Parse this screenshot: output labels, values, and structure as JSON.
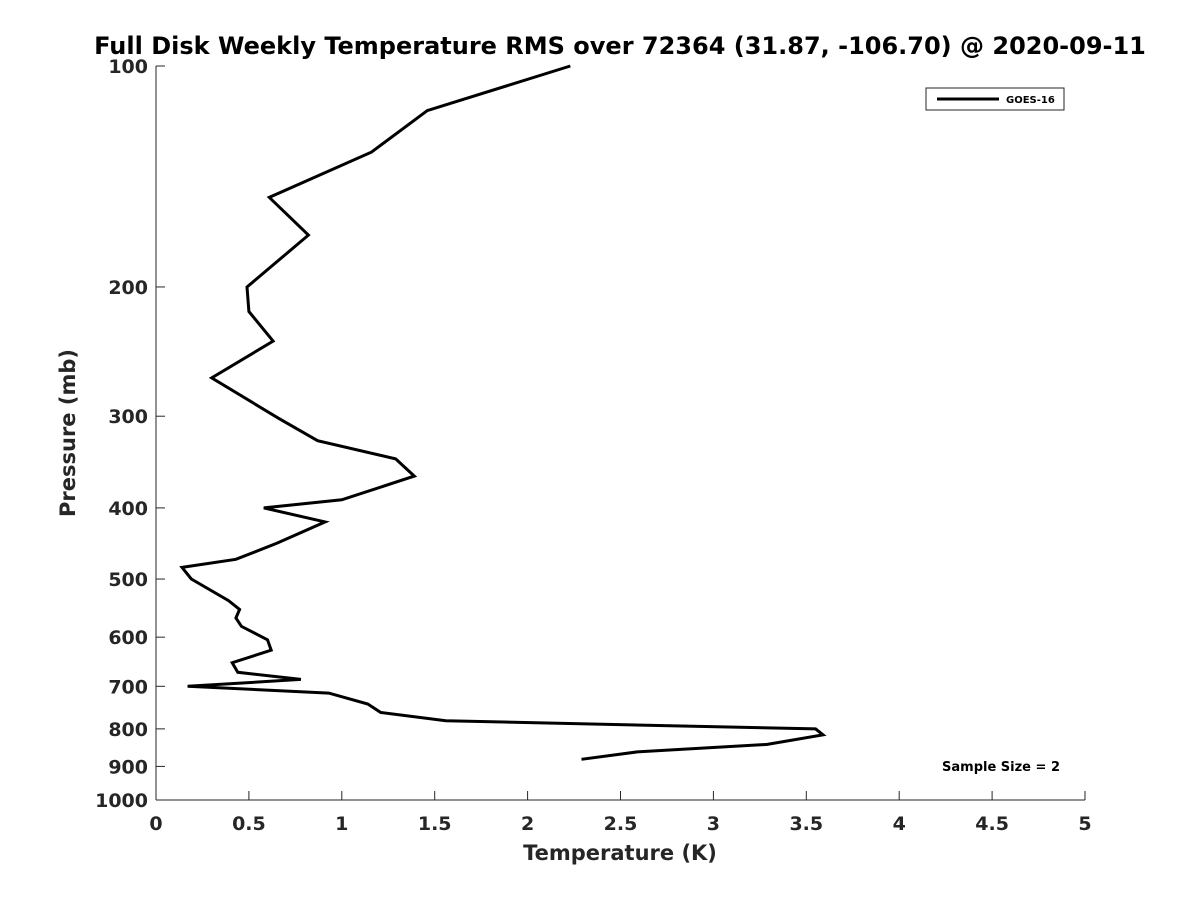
{
  "chart_data": {
    "type": "line",
    "title": "Full Disk Weekly Temperature RMS over 72364 (31.87, -106.70) @ 2020-09-11",
    "xlabel": "Temperature (K)",
    "ylabel": "Pressure (mb)",
    "xlim": [
      0,
      5
    ],
    "ylim": [
      100,
      1000
    ],
    "y_scale": "log",
    "y_reversed": true,
    "x_ticks": [
      "0",
      "0.5",
      "1",
      "1.5",
      "2",
      "2.5",
      "3",
      "3.5",
      "4",
      "4.5",
      "5"
    ],
    "y_ticks": [
      "100",
      "200",
      "300",
      "400",
      "500",
      "600",
      "700",
      "800",
      "900",
      "1000"
    ],
    "grid": false,
    "legend_position": "top-right",
    "annotation": "Sample Size = 2",
    "line_color": "#000000",
    "series": [
      {
        "name": "GOES-16",
        "x": [
          2.23,
          1.46,
          1.16,
          0.61,
          0.82,
          0.49,
          0.5,
          0.63,
          0.3,
          0.66,
          0.87,
          1.29,
          1.39,
          1.0,
          0.58,
          0.91,
          0.65,
          0.43,
          0.14,
          0.19,
          0.39,
          0.45,
          0.43,
          0.46,
          0.6,
          0.62,
          0.41,
          0.44,
          0.78,
          0.17,
          0.93,
          1.14,
          1.21,
          1.56,
          3.55,
          3.59,
          3.29,
          2.59,
          2.29
        ],
        "y": [
          100,
          115,
          131,
          151,
          170,
          200,
          216,
          237,
          266,
          302,
          324,
          343,
          362,
          390,
          400,
          418,
          447,
          470,
          482,
          500,
          535,
          550,
          565,
          580,
          605,
          625,
          650,
          670,
          685,
          700,
          715,
          740,
          760,
          780,
          800,
          815,
          840,
          860,
          880
        ]
      }
    ]
  }
}
